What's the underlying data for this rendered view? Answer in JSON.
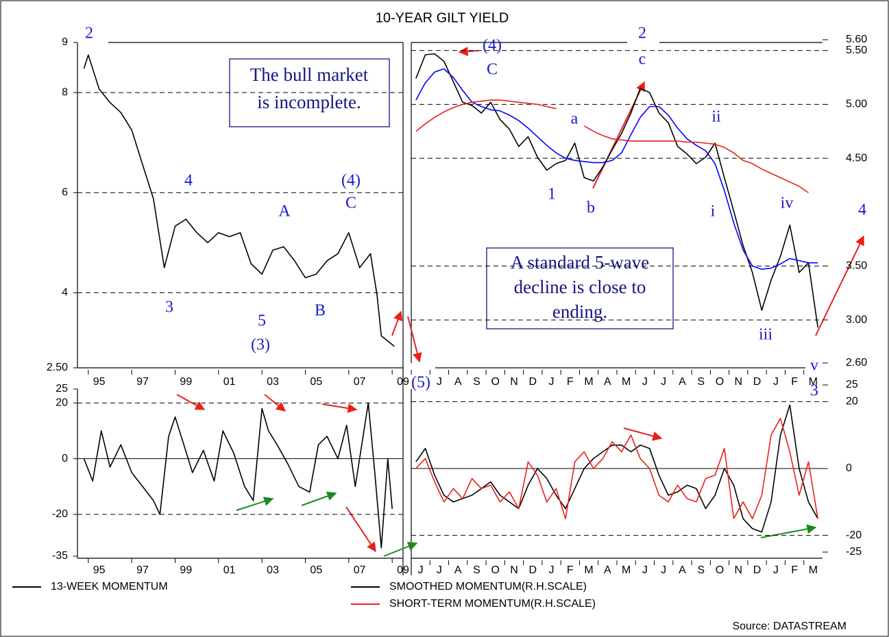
{
  "title": "10-YEAR GILT YIELD",
  "source": "Source: DATASTREAM",
  "chart_data": [
    {
      "type": "line",
      "x": [
        1994.8,
        1995.0,
        1995.5,
        1996.0,
        1996.5,
        1997.0,
        1997.5,
        1998.0,
        1998.5,
        1999.0,
        1999.5,
        2000.0,
        2000.5,
        2001.0,
        2001.5,
        2002.0,
        2002.5,
        2003.0,
        2003.5,
        2004.0,
        2004.5,
        2005.0,
        2005.5,
        2006.0,
        2006.5,
        2007.0,
        2007.5,
        2008.0,
        2008.3,
        2008.5,
        2008.9,
        2009.1
      ],
      "series": [
        {
          "color": "#000000",
          "values": [
            8.48,
            8.75,
            8.07,
            7.8,
            7.6,
            7.25,
            6.56,
            5.88,
            4.5,
            5.33,
            5.47,
            5.2,
            5.0,
            5.2,
            5.12,
            5.2,
            4.58,
            4.37,
            4.85,
            4.92,
            4.64,
            4.3,
            4.37,
            4.64,
            4.78,
            5.2,
            4.5,
            4.78,
            3.96,
            3.14,
            3.0,
            2.93
          ]
        }
      ],
      "xlim": [
        1994.5,
        2009.5
      ],
      "xticks": [
        {
          "value": 1995,
          "label": "95"
        },
        {
          "value": 1997,
          "label": "97"
        },
        {
          "value": 1999,
          "label": "99"
        },
        {
          "value": 2001,
          "label": "01"
        },
        {
          "value": 2003,
          "label": "03"
        },
        {
          "value": 2005,
          "label": "05"
        },
        {
          "value": 2007,
          "label": "07"
        },
        {
          "value": 2009,
          "label": "09"
        }
      ],
      "ylim": [
        2.5,
        9
      ],
      "yticks": [
        {
          "value": 2.5,
          "label": "2.50"
        },
        4,
        6,
        8,
        9
      ],
      "grid": true,
      "annotations": [
        "2",
        "4",
        "3",
        "A",
        "5",
        "(3)",
        "B",
        "(4)",
        "C"
      ],
      "note": [
        "The bull market",
        "is incomplete."
      ]
    },
    {
      "type": "line",
      "categories": [
        null,
        null,
        "J",
        null,
        "A",
        null,
        "S",
        null,
        "O",
        null,
        "N",
        null,
        "D",
        null,
        "J",
        null,
        "F",
        null,
        "M",
        null,
        "A",
        null,
        "M",
        null,
        "J",
        null,
        "J",
        null,
        "A",
        null,
        "S",
        null,
        "O",
        null,
        "N",
        null,
        "D",
        null,
        "J",
        null,
        "F",
        null,
        "M",
        null
      ],
      "series": [
        {
          "color": "#000000",
          "values": [
            5.24,
            5.46,
            5.47,
            5.4,
            5.21,
            5.02,
            4.99,
            4.92,
            5.02,
            4.86,
            4.77,
            4.61,
            4.7,
            4.51,
            4.39,
            4.45,
            4.48,
            4.64,
            4.32,
            4.29,
            4.42,
            4.58,
            4.73,
            4.92,
            5.15,
            5.11,
            4.92,
            4.83,
            4.61,
            4.54,
            4.45,
            4.51,
            4.64,
            4.32,
            4.01,
            3.69,
            3.44,
            3.09,
            3.37,
            3.59,
            3.88,
            3.44,
            3.53,
            2.93
          ]
        },
        {
          "color": "#0000ff",
          "values": [
            5.04,
            5.2,
            5.3,
            5.33,
            5.25,
            5.13,
            5.02,
            4.98,
            4.95,
            4.94,
            4.9,
            4.85,
            4.78,
            4.7,
            4.62,
            4.55,
            4.5,
            4.48,
            4.47,
            4.46,
            4.46,
            4.48,
            4.55,
            4.72,
            4.88,
            4.98,
            4.98,
            4.9,
            4.78,
            4.68,
            4.62,
            4.57,
            4.45,
            4.2,
            3.9,
            3.65,
            3.5,
            3.47,
            3.48,
            3.52,
            3.57,
            3.55,
            3.53,
            3.53
          ]
        },
        {
          "color": "#e8201a",
          "values": [
            4.75,
            4.82,
            4.88,
            4.93,
            4.97,
            5.0,
            5.02,
            5.03,
            5.04,
            5.04,
            5.03,
            5.02,
            5.01,
            5.0,
            4.98,
            4.96,
            null,
            null,
            4.8,
            4.75,
            4.71,
            4.68,
            4.67,
            4.66,
            4.66,
            4.66,
            4.66,
            4.66,
            4.66,
            4.65,
            4.65,
            4.64,
            4.63,
            4.6,
            4.55,
            4.48,
            4.45,
            4.4,
            4.36,
            4.32,
            4.28,
            4.24,
            4.18,
            null
          ]
        }
      ],
      "ylim": [
        2.6,
        5.6
      ],
      "yticks": [
        {
          "value": 2.6,
          "label": "2.60"
        },
        {
          "value": 3,
          "label": "3.00"
        },
        {
          "value": 3.5,
          "label": "3.50"
        },
        {
          "value": 4.5,
          "label": "4.50"
        },
        {
          "value": 5,
          "label": "5.00"
        },
        {
          "value": 5.5,
          "label": "5.50"
        },
        {
          "value": 5.6,
          "label": "5.60"
        }
      ],
      "grid": true,
      "annotations": [
        "(4)",
        "C",
        "2",
        "c",
        "a",
        "1",
        "b",
        "ii",
        "i",
        "iv",
        "iii",
        "v",
        "3",
        "4",
        "(5)"
      ],
      "note": [
        "A standard 5-wave",
        "decline is close to",
        "ending."
      ]
    },
    {
      "type": "line",
      "x": [
        1994.8,
        1995.2,
        1995.6,
        1996.0,
        1996.5,
        1997.0,
        1997.5,
        1998.0,
        1998.3,
        1998.7,
        1999.0,
        1999.4,
        1999.8,
        2000.3,
        2000.8,
        2001.2,
        2001.7,
        2002.2,
        2002.6,
        2003.0,
        2003.3,
        2003.7,
        2004.2,
        2004.7,
        2005.2,
        2005.6,
        2006.0,
        2006.5,
        2006.9,
        2007.3,
        2007.6,
        2007.9,
        2008.2,
        2008.5,
        2008.8,
        2009.0
      ],
      "series": [
        {
          "name": "13-WEEK MOMENTUM",
          "color": "#000000",
          "values": [
            0,
            -8,
            10,
            -3,
            5,
            -5,
            -10,
            -15,
            -20,
            8,
            15,
            5,
            -5,
            3,
            -8,
            10,
            2,
            -10,
            -15,
            18,
            10,
            5,
            -2,
            -10,
            -12,
            5,
            8,
            0,
            12,
            -10,
            5,
            20,
            -5,
            -32,
            0,
            -18
          ]
        }
      ],
      "xlim": [
        1994.5,
        2009.5
      ],
      "xticks": [
        {
          "value": 1995,
          "label": "95"
        },
        {
          "value": 1997,
          "label": "97"
        },
        {
          "value": 1999,
          "label": "99"
        },
        {
          "value": 2001,
          "label": "01"
        },
        {
          "value": 2003,
          "label": "03"
        },
        {
          "value": 2005,
          "label": "05"
        },
        {
          "value": 2007,
          "label": "07"
        },
        {
          "value": 2009,
          "label": "09"
        }
      ],
      "ylim": [
        -35,
        25
      ],
      "yticks": [
        -35,
        -20,
        0,
        20,
        25
      ],
      "grid": true
    },
    {
      "type": "line",
      "categories": [
        "J",
        null,
        "J",
        null,
        "A",
        null,
        "S",
        null,
        "O",
        null,
        "N",
        null,
        "D",
        null,
        "J",
        null,
        "F",
        null,
        "M",
        null,
        "A",
        null,
        "M",
        null,
        "J",
        null,
        "J",
        null,
        "A",
        null,
        "S",
        null,
        "O",
        null,
        "N",
        null,
        "D",
        null,
        "J",
        null,
        "F",
        null,
        "M",
        null
      ],
      "series": [
        {
          "name": "SMOOTHED MOMENTUM(R.H.SCALE)",
          "color": "#000000",
          "values": [
            2,
            6,
            -2,
            -8,
            -10,
            -9,
            -8,
            -6,
            -4,
            -8,
            -10,
            -12,
            -5,
            0,
            -3,
            -8,
            -12,
            -6,
            0,
            3,
            5,
            7,
            7,
            5,
            7,
            6,
            -2,
            -8,
            -7,
            -5,
            -6,
            -12,
            -8,
            0,
            -5,
            -15,
            -18,
            -19,
            -10,
            10,
            19,
            0,
            -10,
            -15
          ]
        },
        {
          "name": "SHORT-TERM MOMENTUM(R.H.SCALE)",
          "color": "#e8201a",
          "values": [
            0,
            3,
            -4,
            -10,
            -6,
            -9,
            -3,
            -6,
            -5,
            -10,
            -7,
            -12,
            2,
            -2,
            -10,
            -6,
            -15,
            2,
            5,
            0,
            3,
            8,
            5,
            10,
            3,
            0,
            -8,
            -10,
            -5,
            -9,
            -10,
            -3,
            -2,
            6,
            -15,
            -10,
            -15,
            -8,
            10,
            15,
            5,
            -8,
            2,
            -15
          ]
        }
      ],
      "ylim": [
        -25,
        25
      ],
      "yticks": [
        -25,
        -20,
        0,
        20,
        25
      ],
      "grid": true
    }
  ]
}
